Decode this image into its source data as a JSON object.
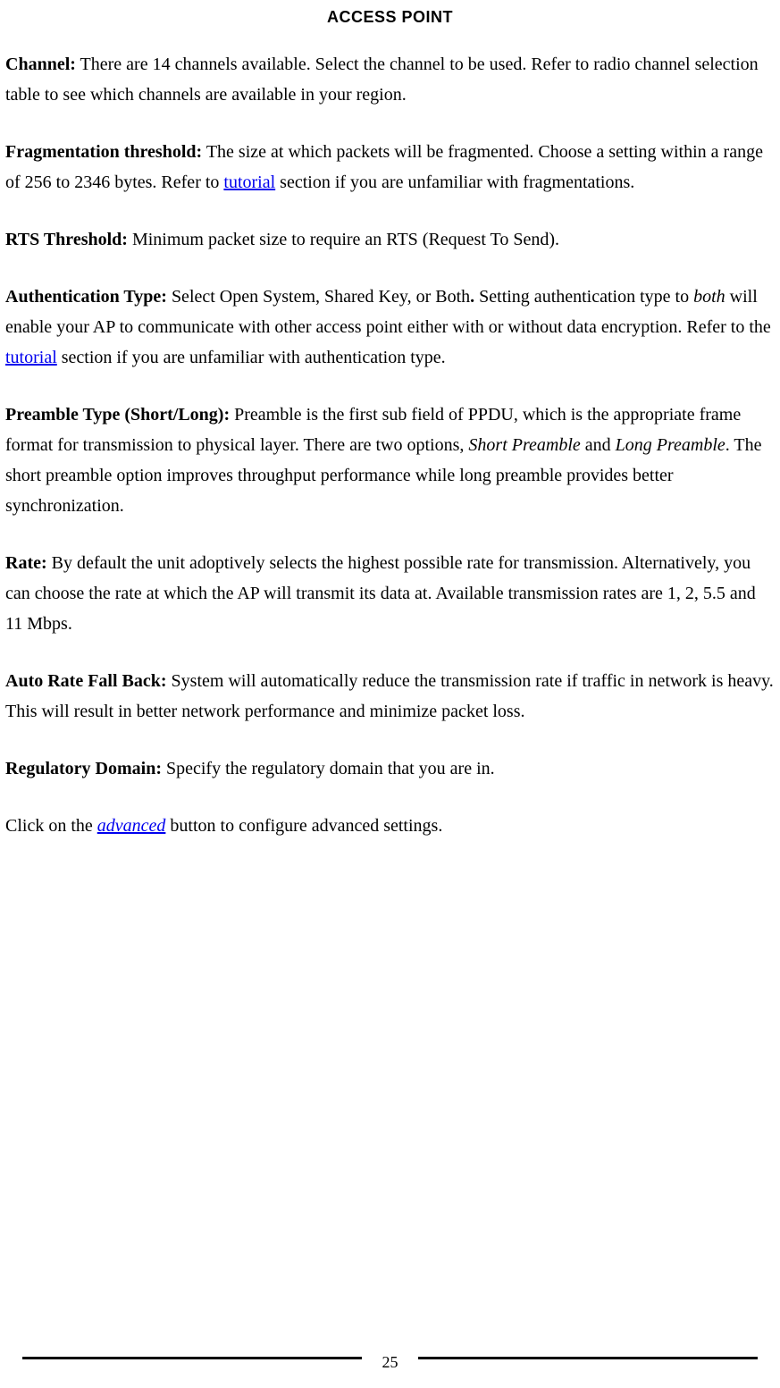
{
  "header": {
    "title": "ACCESS POINT"
  },
  "sections": {
    "channel": {
      "label": "Channel:",
      "text": " There are 14 channels available. Select the channel to be used. Refer to radio channel selection table to see which channels are available in your region."
    },
    "fragmentation": {
      "label": "Fragmentation threshold:",
      "text_before_link": " The size at which packets will be fragmented. Choose a setting within a range of 256 to 2346 bytes. Refer to ",
      "link": "tutorial",
      "text_after_link": " section if you are unfamiliar with fragmentations."
    },
    "rts": {
      "label": "RTS Threshold:",
      "text": " Minimum packet size to require an RTS (Request To Send)."
    },
    "auth": {
      "label": "Authentication Type:",
      "text1": " Select Open System, Shared Key, or Both",
      "dot": ". ",
      "text2": "Setting authentication type to ",
      "italic": "both",
      "text3": " will enable your AP to communicate with other access point either with or without data encryption. Refer to the ",
      "link": "tutorial",
      "text4": " section if you are unfamiliar with authentication type."
    },
    "preamble": {
      "label": "Preamble Type (Short/Long):",
      "text1": " Preamble is the first sub field of PPDU, which is the appropriate frame format for transmission to physical layer. There are two options, ",
      "italic1": "Short Preamble",
      "text2": " and ",
      "italic2": "Long Preamble",
      "text3": ". The short preamble option improves throughput performance while long preamble provides better synchronization."
    },
    "rate": {
      "label": "Rate:",
      "text": " By default the unit adoptively selects the highest possible rate for transmission. Alternatively, you can choose the rate at which the AP will transmit its data at. Available transmission rates are 1, 2, 5.5 and 11 Mbps."
    },
    "fallback": {
      "label": "Auto Rate Fall Back:",
      "text": " System will automatically reduce the transmission rate if traffic in network is heavy. This will result in better network performance and minimize packet loss."
    },
    "regdomain": {
      "label": "Regulatory Domain:",
      "text": " Specify the regulatory domain that you are in."
    },
    "advanced": {
      "text_before": "Click on the ",
      "link": "advanced",
      "text_after": " button to configure advanced settings."
    }
  },
  "footer": {
    "page_number": "25"
  },
  "colors": {
    "background": "#ffffff",
    "text": "#000000",
    "link": "#0000ee"
  }
}
